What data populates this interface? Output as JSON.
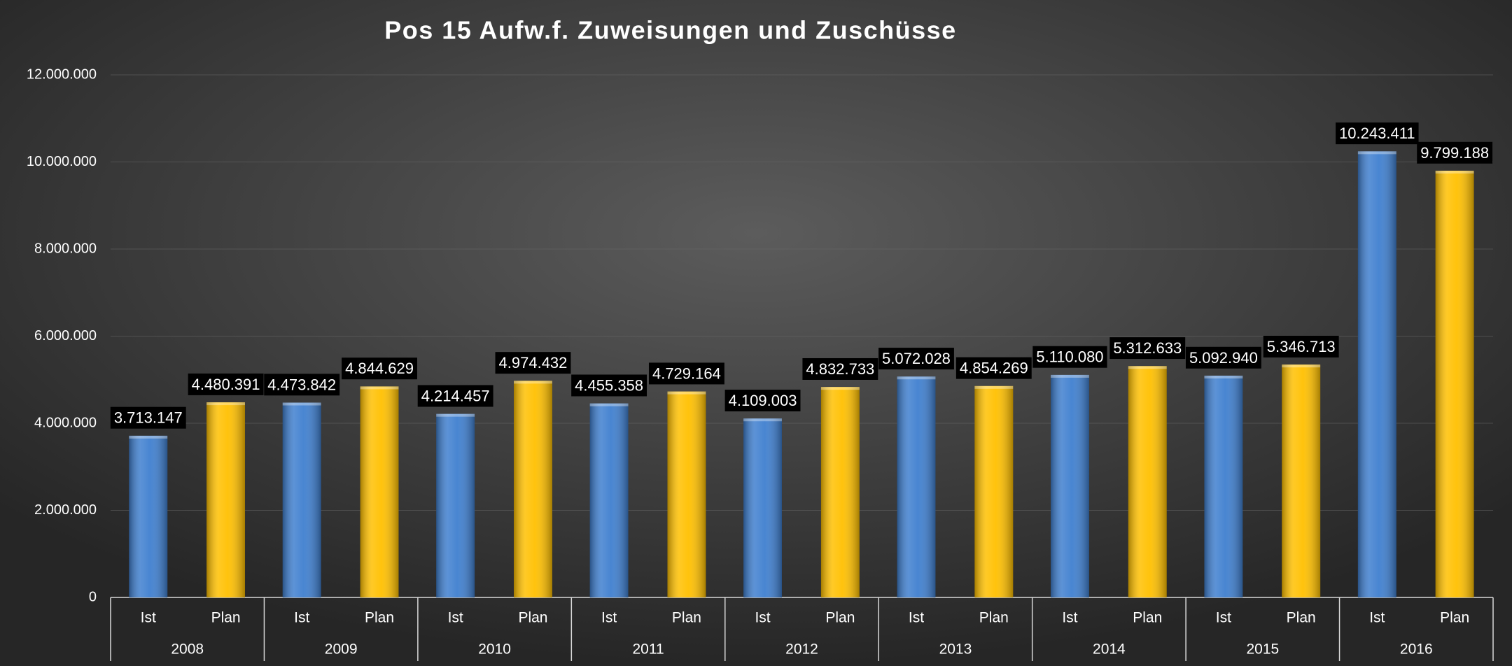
{
  "chart_data": {
    "type": "bar",
    "title": "Pos 15 Aufw.f. Zuweisungen und Zuschüsse",
    "categories": [
      "2008",
      "2009",
      "2010",
      "2011",
      "2012",
      "2013",
      "2014",
      "2015",
      "2016"
    ],
    "series": [
      {
        "name": "Ist",
        "color": "#3f7fcf",
        "values": [
          3713147,
          4473842,
          4214457,
          4455358,
          4109003,
          5072028,
          5110080,
          5092940,
          10243411
        ],
        "value_labels": [
          "3.713.147",
          "4.473.842",
          "4.214.457",
          "4.455.358",
          "4.109.003",
          "5.072.028",
          "5.110.080",
          "5.092.940",
          "10.243.411"
        ]
      },
      {
        "name": "Plan",
        "color": "#ffc000",
        "values": [
          4480391,
          4844629,
          4974432,
          4729164,
          4832733,
          4854269,
          5312633,
          5346713,
          9799188
        ],
        "value_labels": [
          "4.480.391",
          "4.844.629",
          "4.974.432",
          "4.729.164",
          "4.832.733",
          "4.854.269",
          "5.312.633",
          "5.346.713",
          "9.799.188"
        ]
      }
    ],
    "ylim": [
      0,
      12000000
    ],
    "yticks": [
      0,
      {
        "value": 2000000,
        "label": "2.000.000"
      },
      {
        "value": 4000000,
        "label": "4.000.000"
      },
      {
        "value": 6000000,
        "label": "6.000.000"
      },
      {
        "value": 8000000,
        "label": "8.000.000"
      },
      {
        "value": 10000000,
        "label": "10.000.000"
      },
      {
        "value": 12000000,
        "label": "12.000.000"
      }
    ],
    "grid": true
  }
}
